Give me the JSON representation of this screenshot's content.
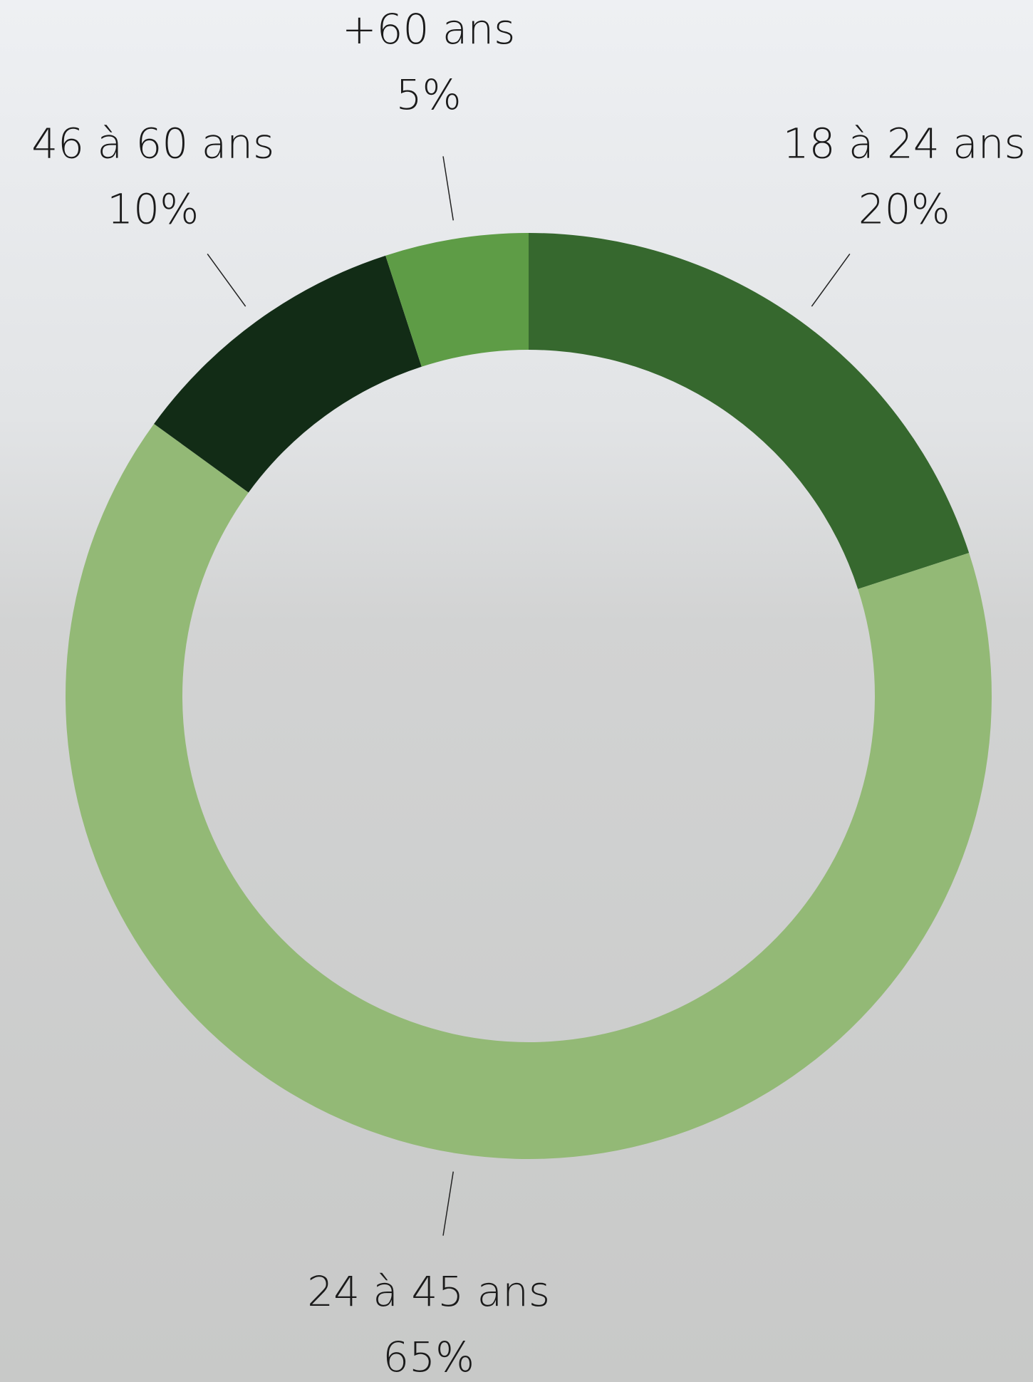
{
  "chart_data": {
    "type": "donut",
    "categories": [
      "18 à 24 ans",
      "24 à 45 ans",
      "46 à 60 ans",
      "+60 ans"
    ],
    "values": [
      20,
      65,
      10,
      5
    ],
    "value_labels": [
      "20%",
      "65%",
      "10%",
      "5%"
    ],
    "colors": [
      "#36682e",
      "#93b976",
      "#122c16",
      "#5e9c46"
    ]
  }
}
